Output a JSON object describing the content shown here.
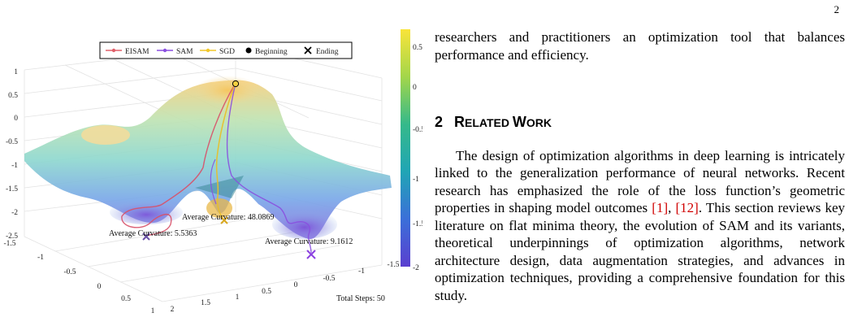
{
  "page_number": "2",
  "figure": {
    "legend": [
      {
        "label": "EISAM",
        "color": "#e0606a",
        "marker": "dot"
      },
      {
        "label": "SAM",
        "color": "#8a4fe0",
        "marker": "dot"
      },
      {
        "label": "SGD",
        "color": "#f2c72a",
        "marker": "dot"
      },
      {
        "label": "Beginning",
        "color": "#000000",
        "marker": "filled-circle"
      },
      {
        "label": "Ending",
        "color": "#000000",
        "marker": "x"
      }
    ],
    "z_ticks": [
      "1",
      "0.5",
      "0",
      "-0.5",
      "-1",
      "-1.5",
      "-2",
      "-2.5"
    ],
    "x_ticks": [
      "-1.5",
      "-1",
      "-0.5",
      "0",
      "0.5",
      "1"
    ],
    "y_ticks": [
      "2",
      "1.5",
      "1",
      "0.5",
      "0",
      "-0.5",
      "-1",
      "-1.5"
    ],
    "colorbar_ticks": [
      "0.5",
      "0",
      "-0.5",
      "-1",
      "-1.5",
      "-2"
    ],
    "colorbar_colors": [
      "#f9e43a",
      "#a3d64a",
      "#35b98a",
      "#20a5b5",
      "#3b6fd9",
      "#5a3fcf"
    ],
    "annotations": {
      "eisam": "Average Curvature: 5.5363",
      "sgd": "Average Curvature: 48.0869",
      "sam": "Average Curvature: 9.1612",
      "steps": "Total Steps: 50"
    }
  },
  "text": {
    "para1": "researchers and practitioners an optimization tool that balances performance and efficiency.",
    "section_number": "2",
    "section_title_first": "R",
    "section_title_rest1": "ELATED ",
    "section_title_mid": "W",
    "section_title_rest2": "ORK",
    "para2_a": "The design of optimization algorithms in deep learning is intricately linked to the generalization performance of neural networks. Recent research has emphasized the role of the loss function’s geometric properties in shaping model outcomes ",
    "cite1": "[1]",
    "sep": ", ",
    "cite2": "[12]",
    "para2_b": ". This section reviews key literature on flat minima theory, the evolution of SAM and its variants, theoretical underpinnings of optimization algorithms, network architecture design, data augmentation strategies, and advances in optimization techniques, providing a comprehensive foundation for this study."
  }
}
